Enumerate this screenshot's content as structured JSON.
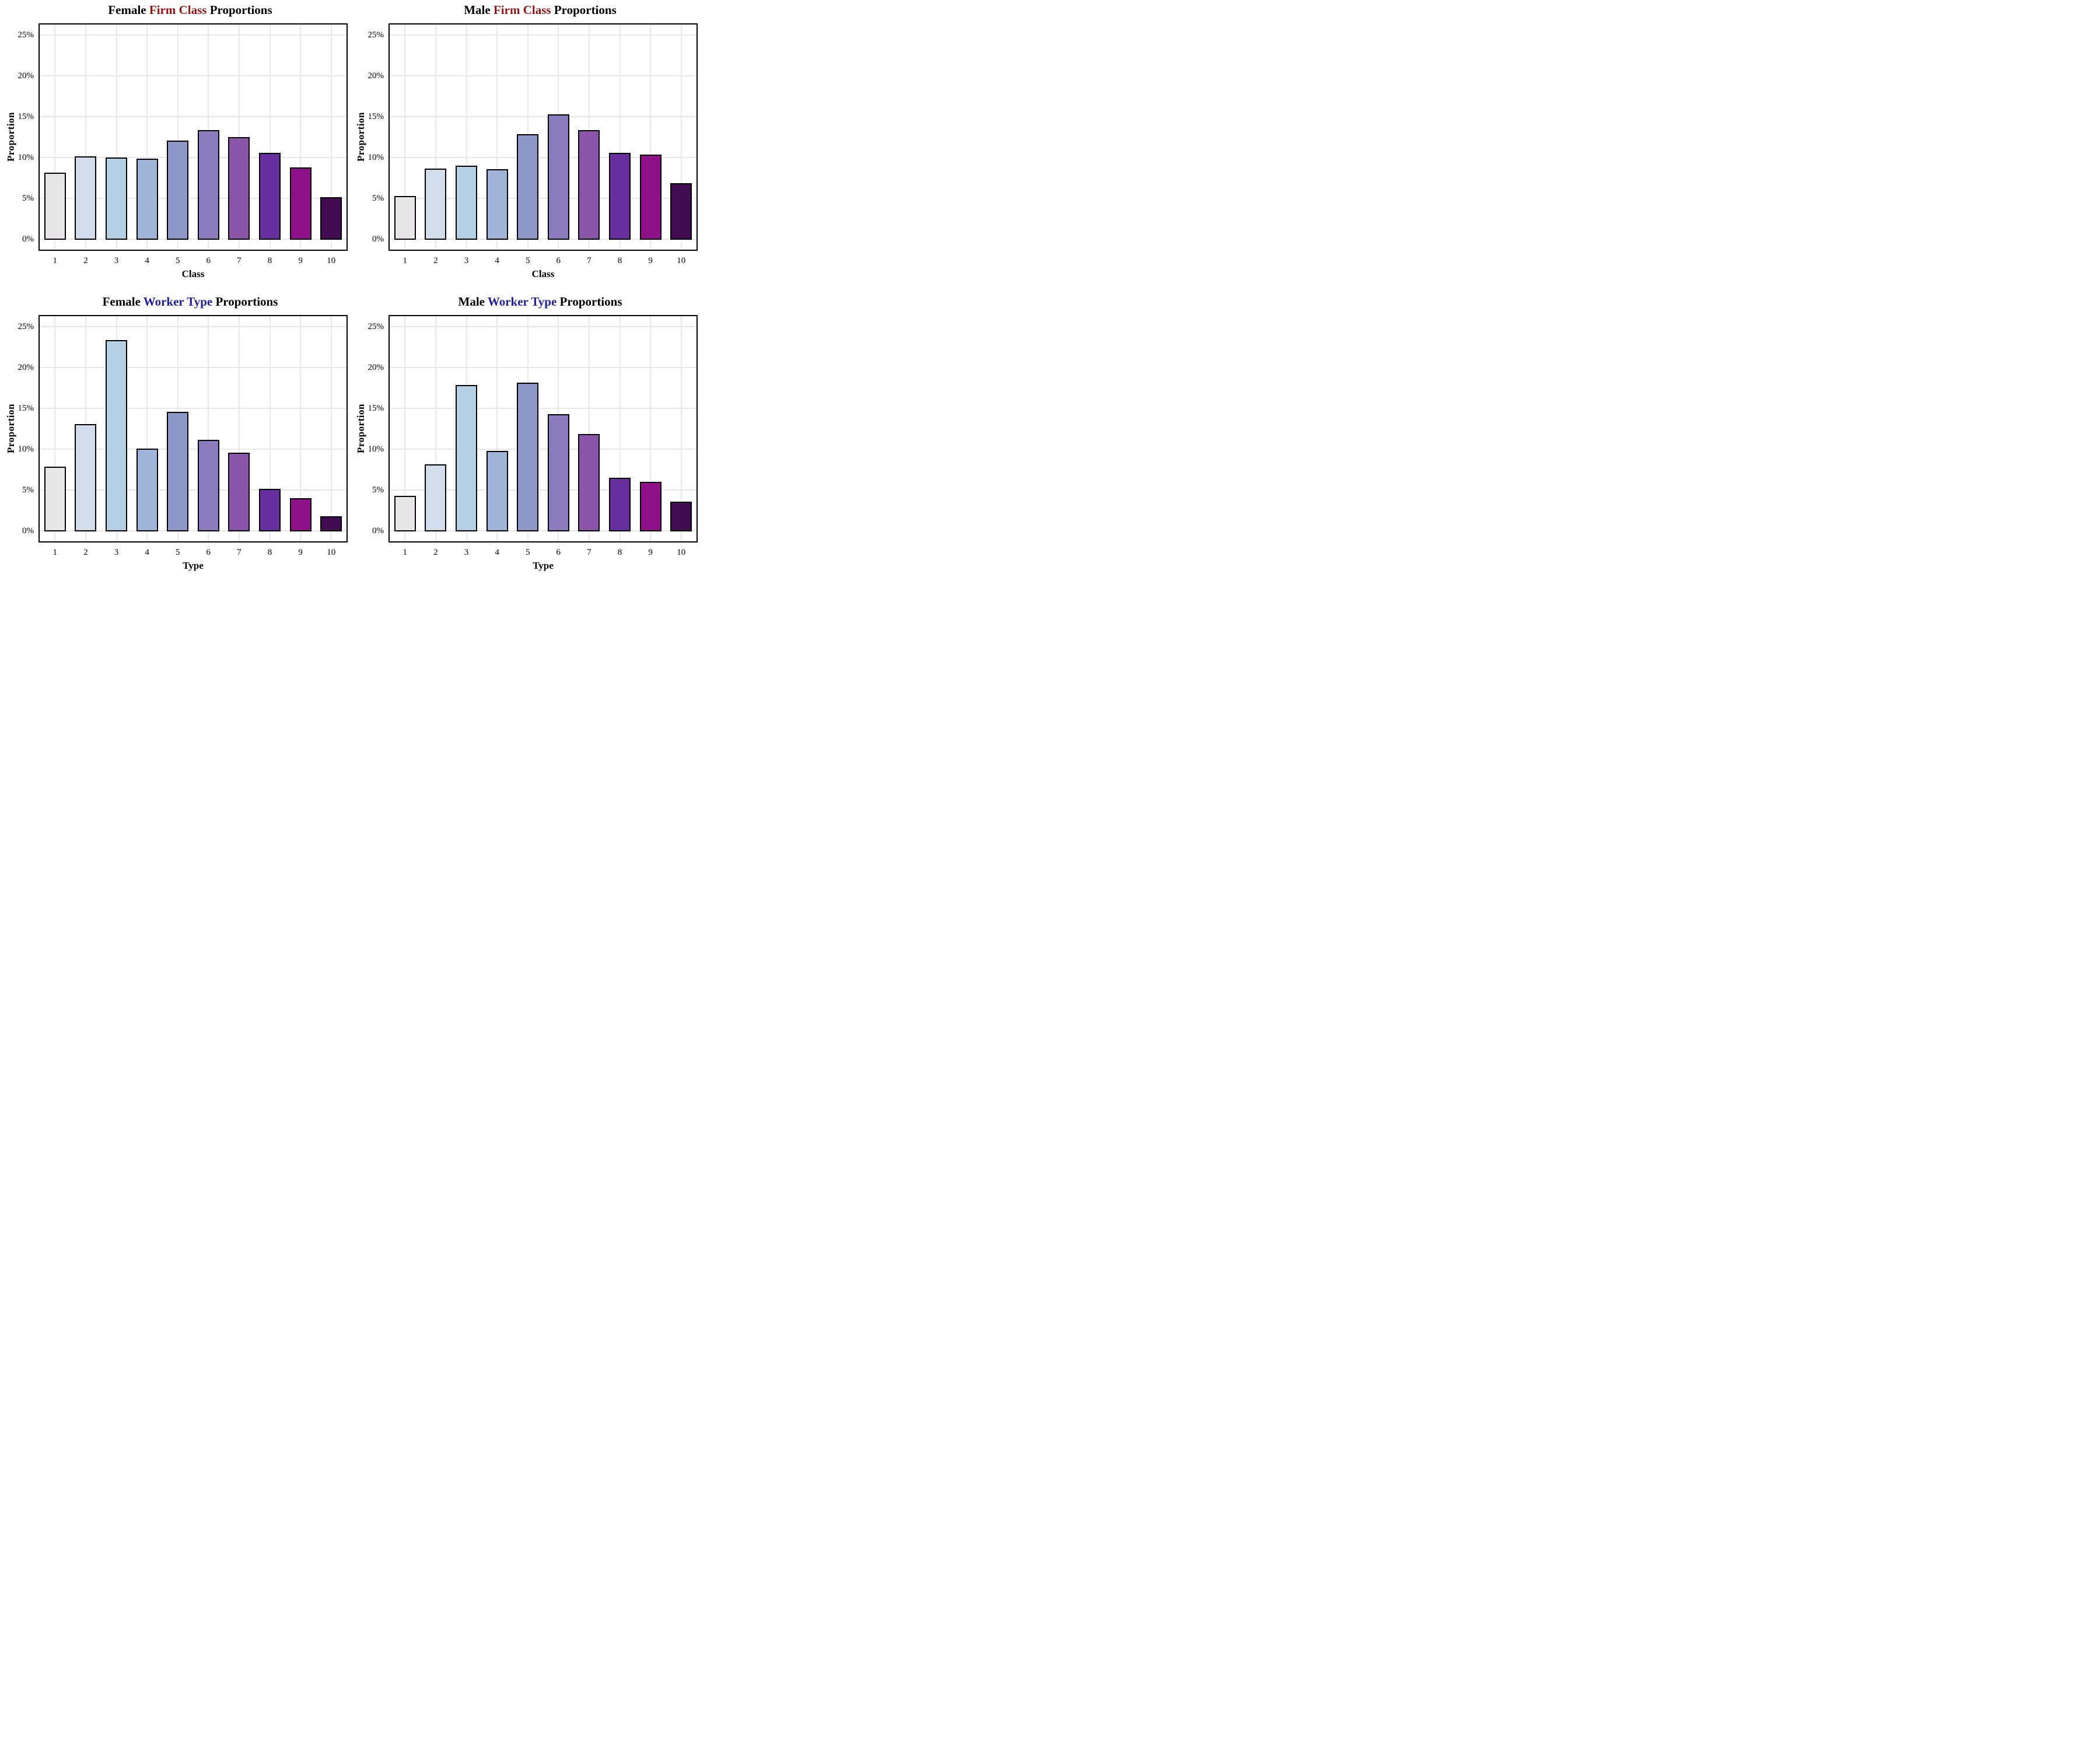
{
  "palette": [
    "#E7E5E7",
    "#D2DDEC",
    "#B5CFE4",
    "#9FB4D8",
    "#8C98C8",
    "#8C7CBD",
    "#8A55A8",
    "#67309E",
    "#8F1189",
    "#440C52"
  ],
  "bar_border_color": "#000000",
  "grid_color": "#E8E8E8",
  "accent_colors": {
    "firm_class_red": "#8F1414",
    "worker_type_blue": "#20209B"
  },
  "chart_data": [
    {
      "type": "bar",
      "title": {
        "prefix": "Female ",
        "highlight": "Firm Class",
        "suffix": " Proportions",
        "highlight_color": "#8F1414"
      },
      "categories": [
        "1",
        "2",
        "3",
        "4",
        "5",
        "6",
        "7",
        "8",
        "9",
        "10"
      ],
      "values": [
        8.1,
        10.1,
        9.9,
        9.8,
        12.0,
        13.3,
        12.4,
        10.5,
        8.7,
        5.1
      ],
      "xlabel": "Class",
      "ylabel": "Proportion",
      "ylim": [
        0,
        26
      ],
      "y_tick_values": [
        0,
        5,
        10,
        15,
        20,
        25
      ],
      "y_tick_labels": [
        "0%",
        "5%",
        "10%",
        "15%",
        "20%",
        "25%"
      ],
      "grid": true,
      "legend": "none"
    },
    {
      "type": "bar",
      "title": {
        "prefix": "Male ",
        "highlight": "Firm Class",
        "suffix": " Proportions",
        "highlight_color": "#8F1414"
      },
      "categories": [
        "1",
        "2",
        "3",
        "4",
        "5",
        "6",
        "7",
        "8",
        "9",
        "10"
      ],
      "values": [
        5.2,
        8.6,
        8.9,
        8.5,
        12.8,
        15.2,
        13.3,
        10.5,
        10.3,
        6.8
      ],
      "xlabel": "Class",
      "ylabel": "Proportion",
      "ylim": [
        0,
        26
      ],
      "y_tick_values": [
        0,
        5,
        10,
        15,
        20,
        25
      ],
      "y_tick_labels": [
        "0%",
        "5%",
        "10%",
        "15%",
        "20%",
        "25%"
      ],
      "grid": true,
      "legend": "none"
    },
    {
      "type": "bar",
      "title": {
        "prefix": "Female ",
        "highlight": "Worker Type",
        "suffix": " Proportions",
        "highlight_color": "#20209B"
      },
      "categories": [
        "1",
        "2",
        "3",
        "4",
        "5",
        "6",
        "7",
        "8",
        "9",
        "10"
      ],
      "values": [
        7.8,
        13.0,
        23.3,
        10.0,
        14.5,
        11.1,
        9.5,
        5.1,
        3.9,
        1.7
      ],
      "xlabel": "Type",
      "ylabel": "Proportion",
      "ylim": [
        0,
        26
      ],
      "y_tick_values": [
        0,
        5,
        10,
        15,
        20,
        25
      ],
      "y_tick_labels": [
        "0%",
        "5%",
        "10%",
        "15%",
        "20%",
        "25%"
      ],
      "grid": true,
      "legend": "none"
    },
    {
      "type": "bar",
      "title": {
        "prefix": "Male ",
        "highlight": "Worker Type",
        "suffix": " Proportions",
        "highlight_color": "#20209B"
      },
      "categories": [
        "1",
        "2",
        "3",
        "4",
        "5",
        "6",
        "7",
        "8",
        "9",
        "10"
      ],
      "values": [
        4.2,
        8.1,
        17.8,
        9.7,
        18.1,
        14.2,
        11.8,
        6.4,
        5.9,
        3.5
      ],
      "xlabel": "Type",
      "ylabel": "Proportion",
      "ylim": [
        0,
        26
      ],
      "y_tick_values": [
        0,
        5,
        10,
        15,
        20,
        25
      ],
      "y_tick_labels": [
        "0%",
        "5%",
        "10%",
        "15%",
        "20%",
        "25%"
      ],
      "grid": true,
      "legend": "none"
    }
  ]
}
